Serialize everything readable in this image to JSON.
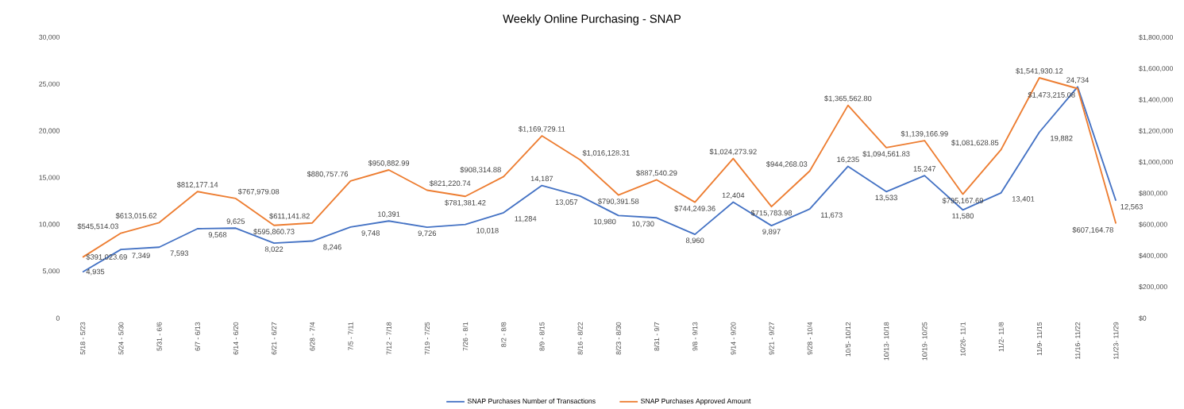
{
  "chart_data": {
    "type": "line",
    "title": "Weekly Online Purchasing - SNAP",
    "categories": [
      "5/18 - 5/23",
      "5/24 - 5/30",
      "5/31 - 6/6",
      "6/7 - 6/13",
      "6/14 - 6/20",
      "6/21 - 6/27",
      "6/28 - 7/4",
      "7/5 - 7/11",
      "7/12 - 7/18",
      "7/19 - 7/25",
      "7/26 - 8/1",
      "8/2 - 8/8",
      "8/9 - 8/15",
      "8/16 - 8/22",
      "8/23 - 8/30",
      "8/31 - 9/7",
      "9/8 - 9/13",
      "9/14 - 9/20",
      "9/21 - 9/27",
      "9/28 - 10/4",
      "10/5- 10/12",
      "10/13- 10/18",
      "10/19- 10/25",
      "10/26- 11/1",
      "11/2- 11/8",
      "11/9- 11/15",
      "11/16- 11/22",
      "11/23- 11/29"
    ],
    "series": [
      {
        "name": "SNAP Purchases Number of Transactions",
        "color": "#4472c4",
        "values": [
          4935,
          7349,
          7593,
          9568,
          9625,
          8022,
          8246,
          9748,
          10391,
          9726,
          10018,
          11284,
          14187,
          13057,
          10980,
          10730,
          8960,
          12404,
          9897,
          11673,
          16235,
          13533,
          15247,
          11580,
          13401,
          19882,
          24734,
          12563
        ],
        "value_labels": [
          "4,935",
          "7,349",
          "7,593",
          "9,568",
          "9,625",
          "8,022",
          "8,246",
          "9,748",
          "10,391",
          "9,726",
          "10,018",
          "11,284",
          "14,187",
          "13,057",
          "10,980",
          "10,730",
          "8,960",
          "12,404",
          "9,897",
          "11,673",
          "16,235",
          "13,533",
          "15,247",
          "11,580",
          "13,401",
          "19,882",
          "24,734",
          "12,563"
        ]
      },
      {
        "name": "SNAP Purchases Approved Amount",
        "color": "#ed7d31",
        "axis": "y2",
        "values": [
          391023.69,
          545514.03,
          613015.62,
          812177.14,
          767979.08,
          595860.73,
          611141.82,
          880757.76,
          950882.99,
          821220.74,
          781381.42,
          908314.88,
          1169729.11,
          1016128.31,
          790391.58,
          887540.29,
          744249.36,
          1024273.92,
          715783.98,
          944268.03,
          1365562.8,
          1094561.83,
          1139166.99,
          795167.69,
          1081628.85,
          1541930.12,
          1473215.08,
          607164.78
        ],
        "value_labels": [
          "$391,023.69",
          "$545,514.03",
          "$613,015.62",
          "$812,177.14",
          "$767,979.08",
          "$595,860.73",
          "$611,141.82",
          "$880,757.76",
          "$950,882.99",
          "$821,220.74",
          "$781,381.42",
          "$908,314.88",
          "$1,169,729.11",
          "$1,016,128.31",
          "$790,391.58",
          "$887,540.29",
          "$744,249.36",
          "$1,024,273.92",
          "$715,783.98",
          "$944,268.03",
          "$1,365,562.80",
          "$1,094,561.83",
          "$1,139,166.99",
          "$795,167.69",
          "$1,081,628.85",
          "$1,541,930.12",
          "$1,473,215.08",
          "$607,164.78"
        ]
      }
    ],
    "ylim": [
      0,
      30000
    ],
    "yticks": [
      0,
      {
        "value": 5000,
        "label": "5,000"
      },
      {
        "value": 10000,
        "label": "10,000"
      },
      {
        "value": 15000,
        "label": "15,000"
      },
      {
        "value": 20000,
        "label": "20,000"
      },
      {
        "value": 25000,
        "label": "25,000"
      },
      {
        "value": 30000,
        "label": "30,000"
      }
    ],
    "y2lim": [
      0,
      1800000
    ],
    "y2ticks": [
      {
        "value": 0,
        "label": "$0"
      },
      {
        "value": 200000,
        "label": "$200,000"
      },
      {
        "value": 400000,
        "label": "$400,000"
      },
      {
        "value": 600000,
        "label": "$600,000"
      },
      {
        "value": 800000,
        "label": "$800,000"
      },
      {
        "value": 1000000,
        "label": "$1,000,000"
      },
      {
        "value": 1200000,
        "label": "$1,200,000"
      },
      {
        "value": 1400000,
        "label": "$1,400,000"
      },
      {
        "value": 1600000,
        "label": "$1,600,000"
      },
      {
        "value": 1800000,
        "label": "$1,800,000"
      }
    ],
    "grid": false,
    "legend": "bottom"
  }
}
